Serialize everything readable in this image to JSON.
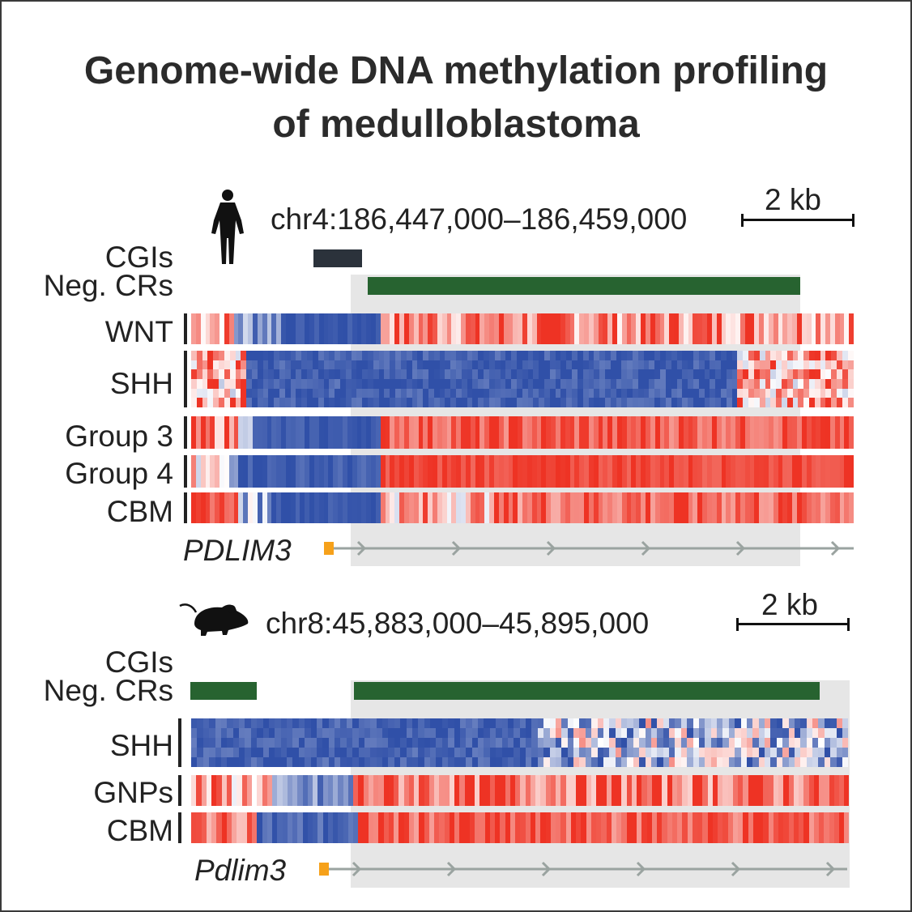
{
  "title": {
    "line1": "Genome-wide DNA methylation profiling",
    "line2": "of medulloblastoma"
  },
  "human": {
    "icon": "human-silhouette-icon",
    "region": "chr4:186,447,000–186,459,000",
    "scale_label": "2 kb",
    "annotation_labels": {
      "cgis": "CGIs",
      "neg_crs": "Neg. CRs"
    },
    "tracks": [
      {
        "label": "WNT"
      },
      {
        "label": "SHH"
      },
      {
        "label": "Group 3"
      },
      {
        "label": "Group 4"
      },
      {
        "label": "CBM"
      }
    ],
    "gene": "PDLIM3"
  },
  "mouse": {
    "icon": "mouse-silhouette-icon",
    "region": "chr8:45,883,000–45,895,000",
    "scale_label": "2 kb",
    "annotation_labels": {
      "cgis": "CGIs",
      "neg_crs": "Neg. CRs"
    },
    "tracks": [
      {
        "label": "SHH"
      },
      {
        "label": "GNPs"
      },
      {
        "label": "CBM"
      }
    ],
    "gene": "Pdlim3"
  },
  "colors": {
    "methylated": "#ee3324",
    "unmethylated": "#3050a8",
    "intermediate": "#ffffff",
    "neg_cr_bar": "#276330",
    "cgi_bar": "#2b323b",
    "gene_body": "#9aa3a0",
    "tss_marker": "#f6a11a",
    "highlight_region": "#e6e6e6"
  }
}
